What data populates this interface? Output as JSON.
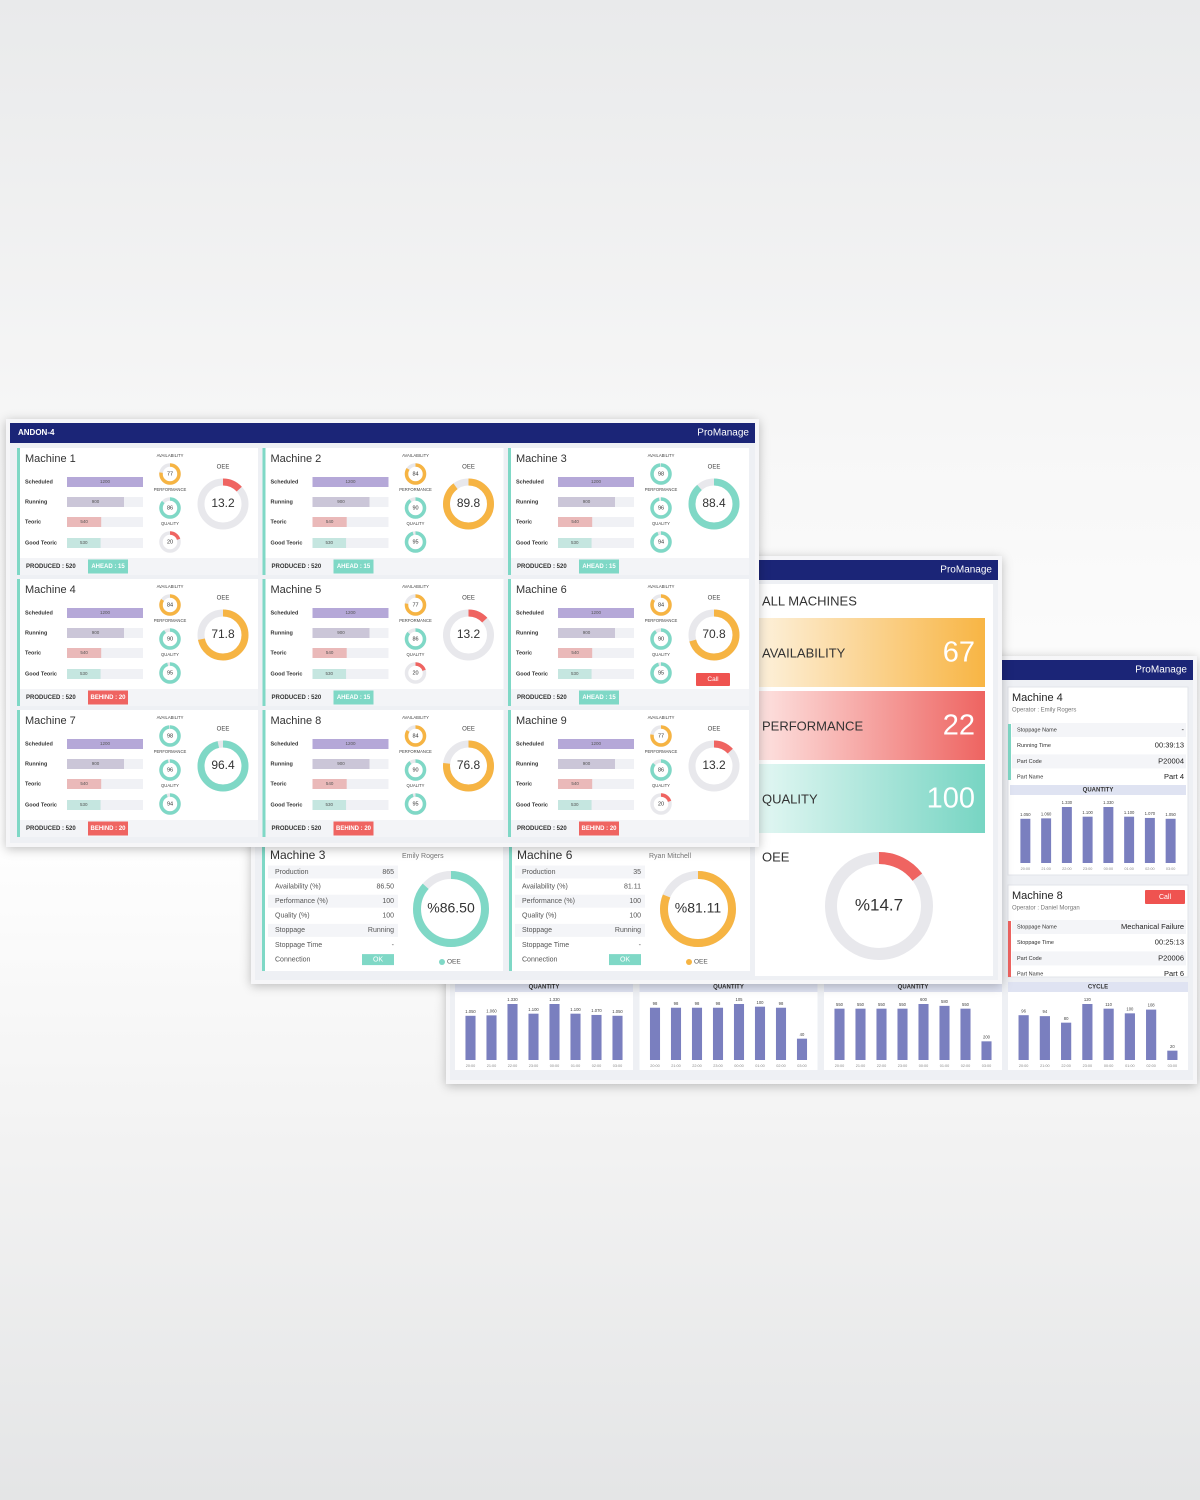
{
  "andon": {
    "title": "ANDON-4",
    "logo": "ProManage",
    "row_labels": [
      "Scheduled",
      "Running",
      "Teoric",
      "Good Teoric"
    ],
    "gauge_labels": [
      "AVAILABILITY",
      "PERFORMANCE",
      "QUALITY"
    ],
    "oee_label": "OEE",
    "call_label": "Call",
    "machines": [
      {
        "name": "Machine 1",
        "bars": [
          1200,
          900,
          540,
          530
        ],
        "gauges": [
          {
            "value": 77,
            "color": "#f6b443"
          },
          {
            "value": 86,
            "color": "#7fd8c6"
          },
          {
            "value": 20,
            "color": "#ef6461"
          }
        ],
        "oee": {
          "value": 13.2,
          "color": "#ef6461"
        },
        "produced": "PRODUCED : 520",
        "status": {
          "text": "AHEAD : 15",
          "color": "#7fd8c6"
        }
      },
      {
        "name": "Machine 2",
        "bars": [
          1200,
          900,
          540,
          530
        ],
        "gauges": [
          {
            "value": 84,
            "color": "#f6b443"
          },
          {
            "value": 90,
            "color": "#7fd8c6"
          },
          {
            "value": 95,
            "color": "#7fd8c6"
          }
        ],
        "oee": {
          "value": 89.8,
          "color": "#f6b443"
        },
        "produced": "PRODUCED : 520",
        "status": {
          "text": "AHEAD : 15",
          "color": "#7fd8c6"
        }
      },
      {
        "name": "Machine 3",
        "bars": [
          1200,
          900,
          540,
          530
        ],
        "gauges": [
          {
            "value": 98,
            "color": "#7fd8c6"
          },
          {
            "value": 96,
            "color": "#7fd8c6"
          },
          {
            "value": 94,
            "color": "#7fd8c6"
          }
        ],
        "oee": {
          "value": 88.4,
          "color": "#7fd8c6"
        },
        "produced": "PRODUCED : 520",
        "status": {
          "text": "AHEAD : 15",
          "color": "#7fd8c6"
        }
      },
      {
        "name": "Machine 4",
        "bars": [
          1200,
          900,
          540,
          530
        ],
        "gauges": [
          {
            "value": 84,
            "color": "#f6b443"
          },
          {
            "value": 90,
            "color": "#7fd8c6"
          },
          {
            "value": 95,
            "color": "#7fd8c6"
          }
        ],
        "oee": {
          "value": 71.8,
          "color": "#f6b443"
        },
        "produced": "PRODUCED : 520",
        "status": {
          "text": "BEHIND : 20",
          "color": "#ef6461"
        }
      },
      {
        "name": "Machine 5",
        "bars": [
          1200,
          900,
          540,
          530
        ],
        "gauges": [
          {
            "value": 77,
            "color": "#f6b443"
          },
          {
            "value": 86,
            "color": "#7fd8c6"
          },
          {
            "value": 20,
            "color": "#ef6461"
          }
        ],
        "oee": {
          "value": 13.2,
          "color": "#ef6461"
        },
        "produced": "PRODUCED : 520",
        "status": {
          "text": "AHEAD : 15",
          "color": "#7fd8c6"
        }
      },
      {
        "name": "Machine 6",
        "bars": [
          1200,
          900,
          540,
          530
        ],
        "gauges": [
          {
            "value": 84,
            "color": "#f6b443"
          },
          {
            "value": 90,
            "color": "#7fd8c6"
          },
          {
            "value": 95,
            "color": "#7fd8c6"
          }
        ],
        "oee": {
          "value": 70.8,
          "color": "#f6b443"
        },
        "produced": "PRODUCED : 520",
        "status": {
          "text": "AHEAD : 15",
          "color": "#7fd8c6"
        },
        "call": true
      },
      {
        "name": "Machine 7",
        "bars": [
          1200,
          900,
          540,
          530
        ],
        "gauges": [
          {
            "value": 98,
            "color": "#7fd8c6"
          },
          {
            "value": 96,
            "color": "#7fd8c6"
          },
          {
            "value": 94,
            "color": "#7fd8c6"
          }
        ],
        "oee": {
          "value": 96.4,
          "color": "#7fd8c6"
        },
        "produced": "PRODUCED : 520",
        "status": {
          "text": "BEHIND : 20",
          "color": "#ef6461"
        }
      },
      {
        "name": "Machine 8",
        "bars": [
          1200,
          900,
          540,
          530
        ],
        "gauges": [
          {
            "value": 84,
            "color": "#f6b443"
          },
          {
            "value": 90,
            "color": "#7fd8c6"
          },
          {
            "value": 95,
            "color": "#7fd8c6"
          }
        ],
        "oee": {
          "value": 76.8,
          "color": "#f6b443"
        },
        "produced": "PRODUCED : 520",
        "status": {
          "text": "BEHIND : 20",
          "color": "#ef6461"
        }
      },
      {
        "name": "Machine 9",
        "bars": [
          1200,
          900,
          540,
          530
        ],
        "gauges": [
          {
            "value": 77,
            "color": "#f6b443"
          },
          {
            "value": 86,
            "color": "#7fd8c6"
          },
          {
            "value": 20,
            "color": "#ef6461"
          }
        ],
        "oee": {
          "value": 13.2,
          "color": "#ef6461"
        },
        "produced": "PRODUCED : 520",
        "status": {
          "text": "BEHIND : 20",
          "color": "#ef6461"
        }
      }
    ]
  },
  "overview": {
    "logo": "ProManage",
    "title": "ALL MACHINES",
    "kpis": [
      {
        "label": "AVAILABILITY",
        "value": 67,
        "colors": [
          "#fdf1dc",
          "#f8b544"
        ]
      },
      {
        "label": "PERFORMANCE",
        "value": 22,
        "colors": [
          "#fde3e1",
          "#ee6461"
        ]
      },
      {
        "label": "QUALITY",
        "value": 100,
        "colors": [
          "#e3f7f3",
          "#77d5c3"
        ]
      }
    ],
    "oee": {
      "label": "OEE",
      "value": 14.7,
      "text": "%14.7",
      "color": "#ef6461"
    },
    "machines": [
      {
        "name": "Machine 3",
        "operator": "Emily Rogers",
        "rows": [
          [
            "Production",
            "865"
          ],
          [
            "Availability (%)",
            "86.50"
          ],
          [
            "Performance (%)",
            "100"
          ],
          [
            "Quality (%)",
            "100"
          ],
          [
            "Stoppage",
            "Running"
          ],
          [
            "Stoppage Time",
            "-"
          ]
        ],
        "connection": {
          "label": "Connection",
          "value": "OK"
        },
        "oee": {
          "value": 86.5,
          "text": "%86.50",
          "color": "#7fd8c6"
        },
        "legend": "OEE"
      },
      {
        "name": "Machine 6",
        "operator": "Ryan Mitchell",
        "rows": [
          [
            "Production",
            "35"
          ],
          [
            "Availability (%)",
            "81.11"
          ],
          [
            "Performance (%)",
            "100"
          ],
          [
            "Quality (%)",
            "100"
          ],
          [
            "Stoppage",
            "Running"
          ],
          [
            "Stoppage Time",
            "-"
          ]
        ],
        "connection": {
          "label": "Connection",
          "value": "OK"
        },
        "oee": {
          "value": 81.11,
          "text": "%81.11",
          "color": "#f6b443"
        },
        "legend": "OEE"
      }
    ]
  },
  "detail": {
    "logo": "ProManage",
    "hours": [
      "20:00",
      "21:00",
      "22:00",
      "23:00",
      "00:00",
      "01:00",
      "02:00",
      "03:00"
    ],
    "machines": [
      {
        "name": "Machine 4",
        "operator": "Operator :  Emily Rogers",
        "accent": "#7fd8c6",
        "rows": [
          [
            "Stoppage Name",
            "-"
          ],
          [
            "Running Time",
            "00:39:13"
          ],
          [
            "Part Code",
            "P20004"
          ],
          [
            "Part Name",
            "Part 4"
          ]
        ],
        "chart": {
          "title": "QUANTITY",
          "values": [
            1050,
            1060,
            1330,
            1100,
            1330,
            1100,
            1070,
            1050
          ],
          "value_labels": [
            "1.050",
            "1.060",
            "1.330",
            "1.100",
            "1.330",
            "1.100",
            "1.070",
            "1.050"
          ]
        }
      },
      {
        "name": "Machine 8",
        "operator": "Operator :  Daniel Morgan",
        "accent": "#ef6461",
        "call": "Call",
        "rows": [
          [
            "Stoppage Name",
            "Mechanical Failure"
          ],
          [
            "Stoppage Time",
            "00:25:13"
          ],
          [
            "Part Code",
            "P20006"
          ],
          [
            "Part Name",
            "Part 6"
          ]
        ],
        "chart": {
          "title": "CYCLE",
          "values": [
            96,
            94,
            80,
            120,
            110,
            100,
            108,
            20
          ]
        }
      }
    ],
    "charts": [
      {
        "title": "QUANTITY",
        "values": [
          1050,
          1060,
          1330,
          1100,
          1330,
          1100,
          1070,
          1050
        ],
        "value_labels": [
          "1.050",
          "1.060",
          "1.330",
          "1.100",
          "1.330",
          "1.100",
          "1.070",
          "1.050"
        ]
      },
      {
        "title": "QUANTITY",
        "values": [
          98,
          98,
          98,
          98,
          105,
          100,
          98,
          40
        ]
      },
      {
        "title": "QUANTITY",
        "values": [
          550,
          550,
          550,
          550,
          600,
          580,
          550,
          200
        ]
      }
    ]
  }
}
